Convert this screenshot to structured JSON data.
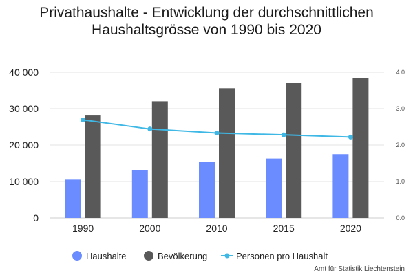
{
  "chart_data": {
    "type": "bar",
    "title": "Privathaushalte - Entwicklung der durchschnittlichen Haushaltsgrösse von 1990 bis 2020",
    "categories": [
      "1990",
      "2000",
      "2010",
      "2015",
      "2020"
    ],
    "series": [
      {
        "name": "Haushalte",
        "type": "bar",
        "axis": "left",
        "color": "#6b8cff",
        "values": [
          10500,
          13200,
          15400,
          16300,
          17500
        ]
      },
      {
        "name": "Bevölkerung",
        "type": "bar",
        "axis": "left",
        "color": "#595959",
        "values": [
          28100,
          32000,
          35600,
          37100,
          38400
        ]
      },
      {
        "name": "Personen pro Haushalt",
        "type": "line",
        "axis": "right",
        "color": "#3fb8e6",
        "values": [
          2.69,
          2.44,
          2.33,
          2.28,
          2.22
        ]
      }
    ],
    "y_left": {
      "min": 0,
      "max": 40000,
      "ticks": [
        "0",
        "10 000",
        "20 000",
        "30 000",
        "40 000"
      ]
    },
    "y_right": {
      "min": 0,
      "max": 4,
      "ticks": [
        "0.0",
        "1.0",
        "2.0",
        "3.0",
        "4.0"
      ]
    },
    "grid": true,
    "legend_position": "bottom",
    "source": "Amt für Statistik Liechtenstein"
  }
}
